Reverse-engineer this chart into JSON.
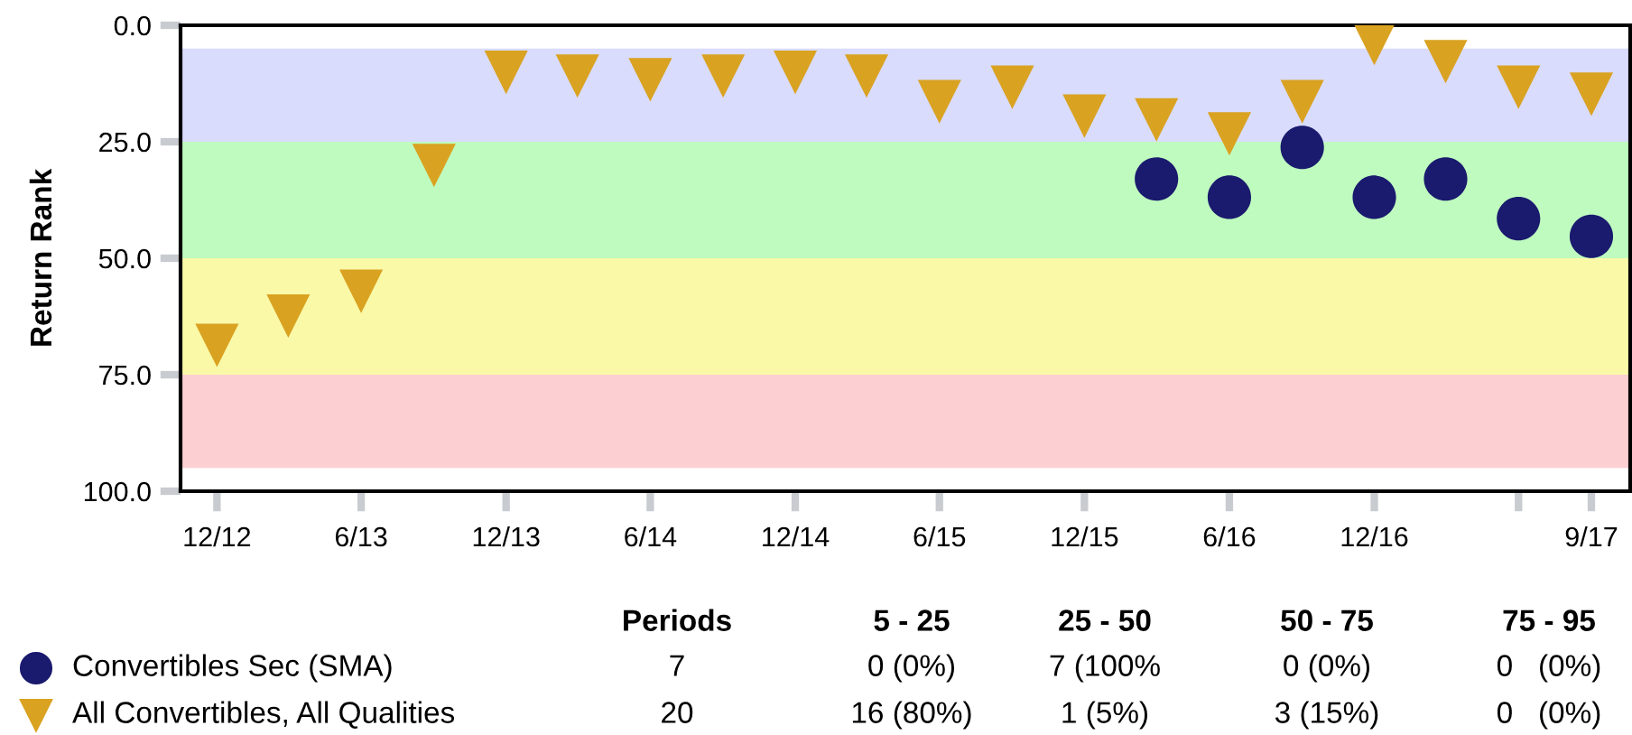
{
  "chart_data": {
    "type": "scatter",
    "ylabel": "Return Rank",
    "x": [
      "2012-12",
      "2013-03",
      "2013-06",
      "2013-09",
      "2013-12",
      "2014-03",
      "2014-06",
      "2014-09",
      "2014-12",
      "2015-03",
      "2015-06",
      "2015-09",
      "2015-12",
      "2016-03",
      "2016-06",
      "2016-09",
      "2016-12",
      "2017-03",
      "2017-06",
      "2017-09"
    ],
    "series": [
      {
        "name": "Convertibles Sec (SMA)",
        "color": "#1a1a6e",
        "marker": "circle",
        "values": [
          null,
          null,
          null,
          null,
          null,
          null,
          null,
          null,
          null,
          null,
          null,
          null,
          null,
          33.0,
          36.9,
          26.2,
          36.9,
          33.0,
          41.5,
          45.3
        ]
      },
      {
        "name": "All Convertibles, All Qualities",
        "color": "#daa221",
        "marker": "triangle",
        "values": [
          68.7,
          62.4,
          57.1,
          30.1,
          10.1,
          10.9,
          11.7,
          10.9,
          10.1,
          10.9,
          16.4,
          13.3,
          19.5,
          20.3,
          23.3,
          16.4,
          3.9,
          7.8,
          13.3,
          14.8
        ]
      }
    ],
    "ylim": [
      100,
      0
    ],
    "yticks": [
      {
        "value": 0,
        "label": "0.0"
      },
      {
        "value": 25,
        "label": "25.0"
      },
      {
        "value": 50,
        "label": "50.0"
      },
      {
        "value": 75,
        "label": "75.0"
      },
      {
        "value": 100,
        "label": "100.0"
      }
    ],
    "xlim": [
      "2012-10-16",
      "2017-10-20"
    ],
    "xticks": [
      {
        "value": "2012-12",
        "label": "12/12"
      },
      {
        "value": "2013-06",
        "label": "6/13"
      },
      {
        "value": "2013-12",
        "label": "12/13"
      },
      {
        "value": "2014-06",
        "label": "6/14"
      },
      {
        "value": "2014-12",
        "label": "12/14"
      },
      {
        "value": "2015-06",
        "label": "6/15"
      },
      {
        "value": "2015-12",
        "label": "12/15"
      },
      {
        "value": "2016-06",
        "label": "6/16"
      },
      {
        "value": "2016-12",
        "label": "12/16"
      },
      {
        "value": "2017-06",
        "label": null
      },
      {
        "value": "2017-09",
        "label": "9/17"
      }
    ],
    "bands": [
      {
        "axis": "y",
        "from": 5,
        "to": 25,
        "color": "#d9dcfc"
      },
      {
        "axis": "y",
        "from": 25,
        "to": 50,
        "color": "#bffbbf"
      },
      {
        "axis": "y",
        "from": 50,
        "to": 75,
        "color": "#f9f9a8"
      },
      {
        "axis": "y",
        "from": 75,
        "to": 95,
        "color": "#fccfd2"
      }
    ],
    "grid": false,
    "legend": "bottom",
    "annotations": [
      "Periods",
      "5 - 25",
      "25 - 50",
      "50 - 75",
      "75 - 95",
      "7",
      "0 (0%)",
      "7 (100%",
      "0 (0%)",
      "0   (0%)",
      "20",
      "16 (80%)",
      "1 (5%)",
      "3 (15%)",
      "0   (0%)"
    ]
  }
}
